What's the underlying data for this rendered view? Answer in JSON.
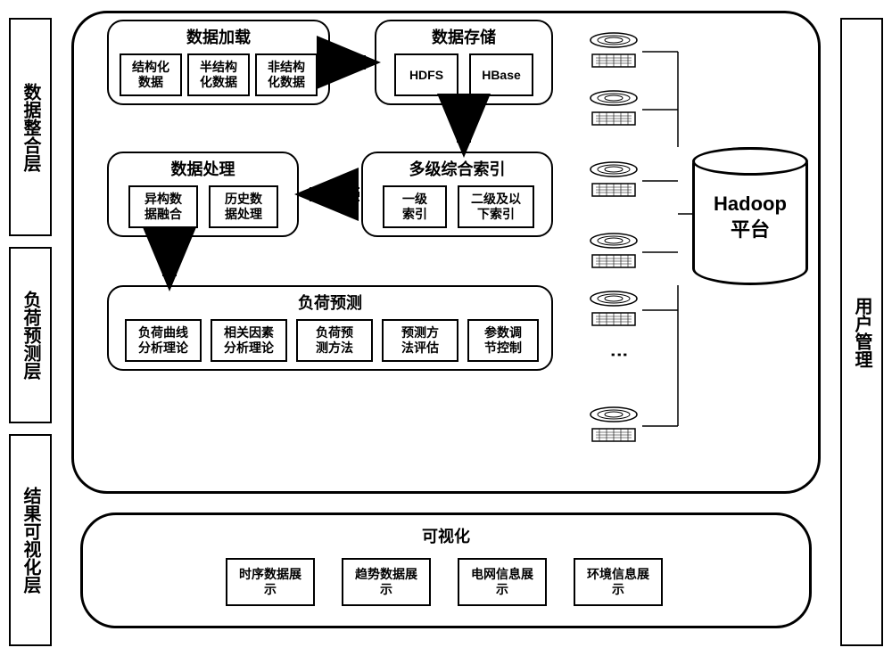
{
  "leftLabels": {
    "layer1": "数据整合层",
    "layer2": "负荷预测层",
    "layer3": "结果可视化层"
  },
  "rightLabel": "用户管理",
  "modules": {
    "dataLoad": {
      "title": "数据加载",
      "items": [
        "结构化\n数据",
        "半结构\n化数据",
        "非结构\n化数据"
      ]
    },
    "dataStore": {
      "title": "数据存储",
      "items": [
        "HDFS",
        "HBase"
      ]
    },
    "dataProcess": {
      "title": "数据处理",
      "items": [
        "异构数\n据融合",
        "历史数\n据处理"
      ]
    },
    "multiIndex": {
      "title": "多级综合索引",
      "items": [
        "一级\n索引",
        "二级及以\n下索引"
      ]
    },
    "loadForecast": {
      "title": "负荷预测",
      "items": [
        "负荷曲线\n分析理论",
        "相关因素\n分析理论",
        "负荷预\n测方法",
        "预测方\n法评估",
        "参数调\n节控制"
      ]
    },
    "visualization": {
      "title": "可视化",
      "items": [
        "时序数据展\n示",
        "趋势数据展\n示",
        "电网信息展\n示",
        "环境信息展\n示"
      ]
    }
  },
  "hadoop": "Hadoop\n平台",
  "colors": {
    "border": "#000000",
    "bg": "#ffffff"
  }
}
